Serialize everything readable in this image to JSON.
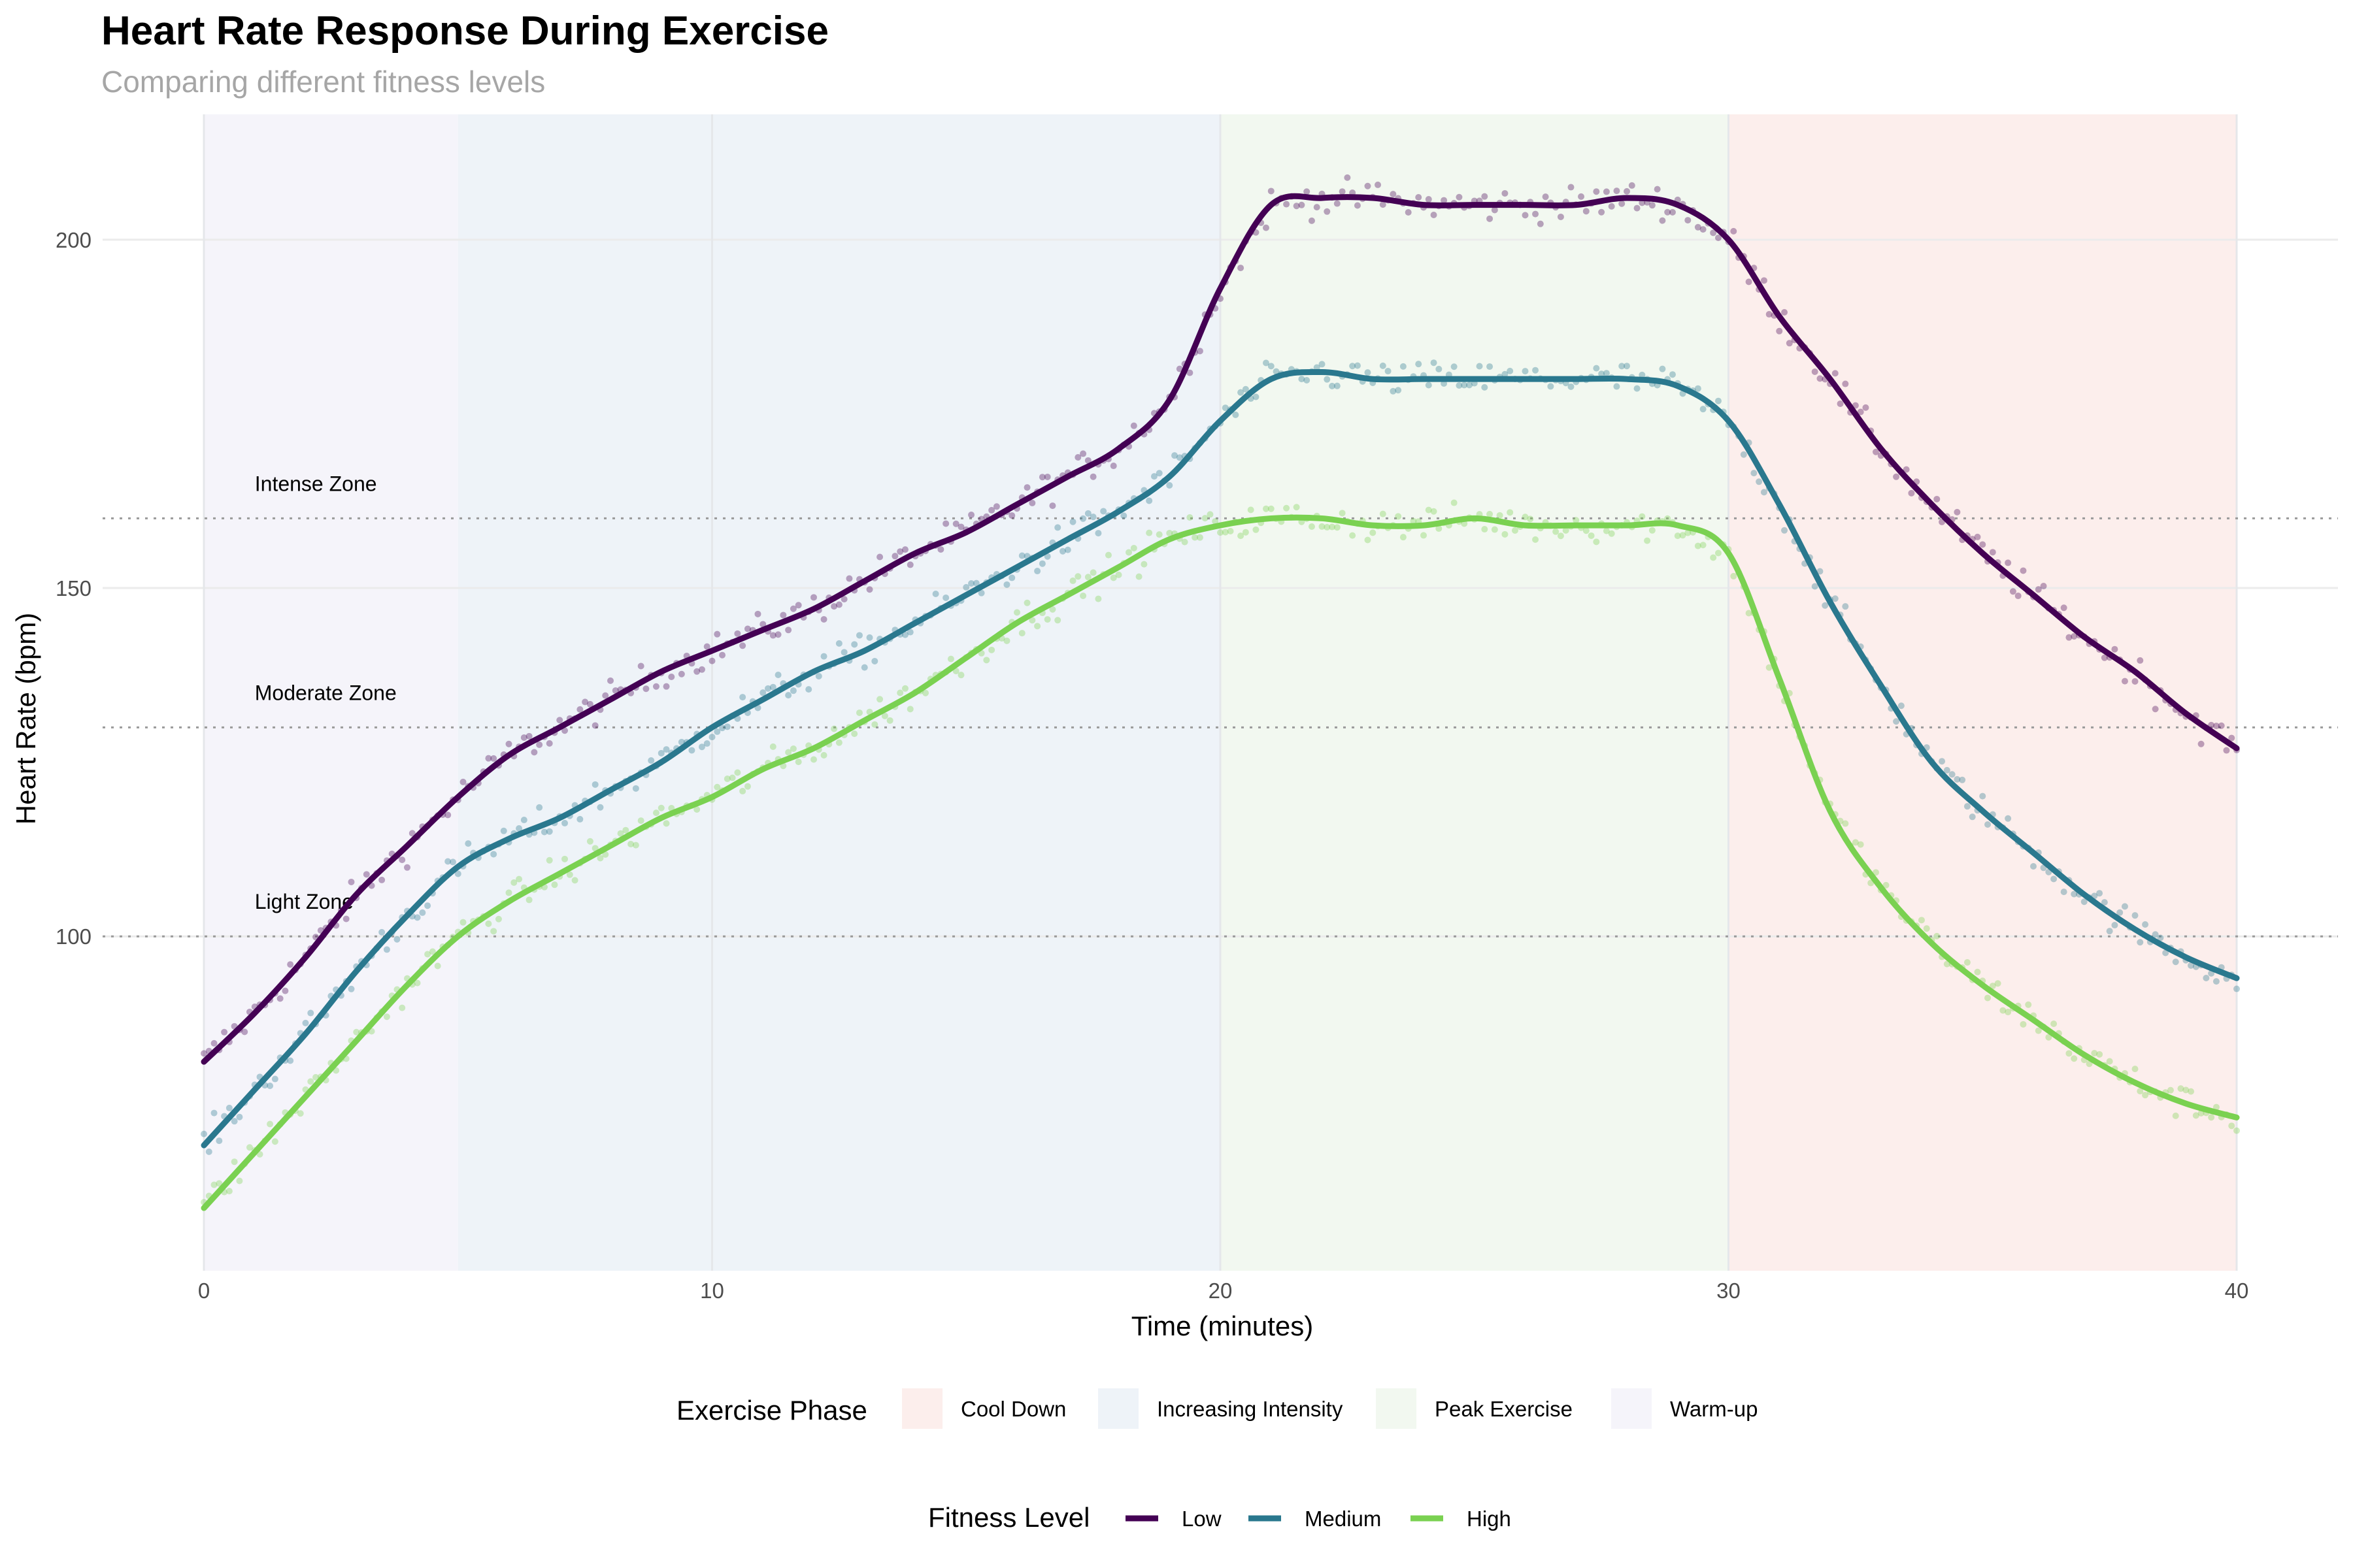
{
  "chart_data": {
    "type": "line",
    "title": "Heart Rate Response During Exercise",
    "subtitle": "Comparing different fitness levels",
    "xlabel": "Time (minutes)",
    "ylabel": "Heart Rate (bpm)",
    "xlim": [
      0,
      40
    ],
    "ylim": [
      52,
      218
    ],
    "x_ticks": [
      0,
      10,
      20,
      30,
      40
    ],
    "y_ticks": [
      100,
      150,
      200
    ],
    "grid": true,
    "phases": [
      {
        "name": "Warm-up",
        "start": 0,
        "end": 5,
        "color": "#F5F4FA"
      },
      {
        "name": "Increasing Intensity",
        "start": 5,
        "end": 20,
        "color": "#EEF3F8"
      },
      {
        "name": "Peak Exercise",
        "start": 20,
        "end": 30,
        "color": "#F2F8F0"
      },
      {
        "name": "Cool Down",
        "start": 30,
        "end": 40,
        "color": "#FCEEEC"
      }
    ],
    "zones": [
      {
        "label": "Light Zone",
        "y": 100
      },
      {
        "label": "Moderate Zone",
        "y": 130
      },
      {
        "label": "Intense Zone",
        "y": 160
      }
    ],
    "x": [
      0,
      1,
      2,
      3,
      4,
      5,
      6,
      7,
      8,
      9,
      10,
      11,
      12,
      13,
      14,
      15,
      16,
      17,
      18,
      19,
      20,
      21,
      22,
      23,
      24,
      25,
      26,
      27,
      28,
      29,
      30,
      31,
      32,
      33,
      34,
      35,
      36,
      37,
      38,
      39,
      40
    ],
    "series": [
      {
        "name": "Low",
        "color": "#440154",
        "values": [
          82,
          89,
          97,
          106,
          113,
          120,
          126,
          130,
          134,
          138,
          141,
          144,
          147,
          151,
          155,
          158,
          162,
          166,
          170,
          177,
          193,
          205,
          206,
          206,
          205,
          205,
          205,
          205,
          206,
          205,
          200,
          189,
          180,
          170,
          162,
          155,
          149,
          143,
          138,
          132,
          127
        ]
      },
      {
        "name": "Medium",
        "color": "#2A788E",
        "values": [
          70,
          78,
          86,
          95,
          103,
          110,
          114,
          117,
          121,
          125,
          130,
          134,
          138,
          141,
          145,
          149,
          153,
          157,
          161,
          166,
          174,
          180,
          181,
          180,
          180,
          180,
          180,
          180,
          180,
          179,
          174,
          162,
          148,
          136,
          125,
          118,
          112,
          106,
          101,
          97,
          94
        ]
      },
      {
        "name": "High",
        "color": "#7AD151",
        "values": [
          61,
          69,
          77,
          85,
          93,
          100,
          105,
          109,
          113,
          117,
          120,
          124,
          127,
          131,
          135,
          140,
          145,
          149,
          153,
          157,
          159,
          160,
          160,
          159,
          159,
          160,
          159,
          159,
          159,
          159,
          155,
          137,
          118,
          107,
          99,
          93,
          88,
          83,
          79,
          76,
          74
        ]
      }
    ],
    "legends": {
      "phase": {
        "title": "Exercise Phase",
        "items": [
          "Cool Down",
          "Increasing Intensity",
          "Peak Exercise",
          "Warm-up"
        ]
      },
      "fitness": {
        "title": "Fitness Level",
        "items": [
          "Low",
          "Medium",
          "High"
        ]
      }
    }
  }
}
